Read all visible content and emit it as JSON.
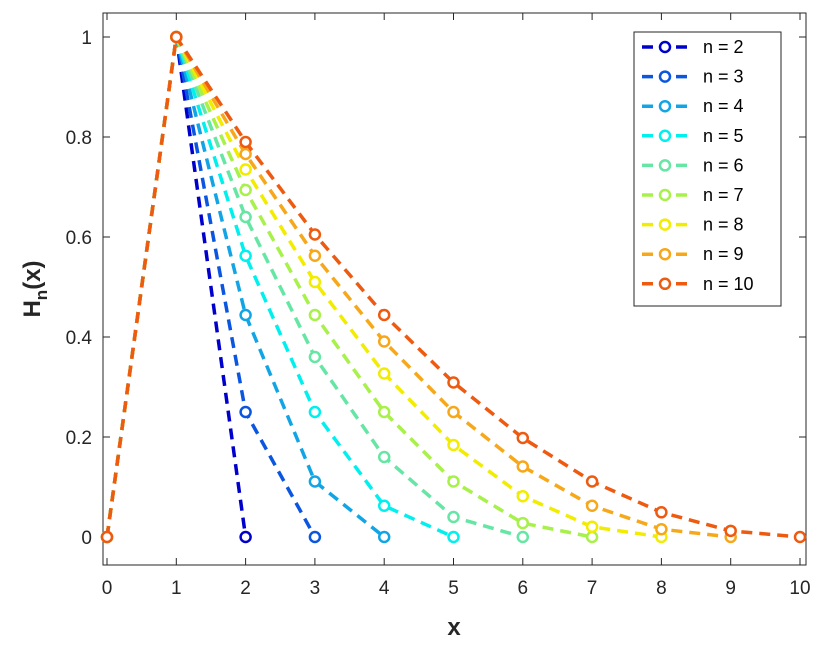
{
  "chart_data": {
    "type": "line",
    "xlabel": "x",
    "ylabel": "H",
    "ylabel_sub": "n",
    "ylabel_tail": "(x)",
    "xlim": [
      0,
      10
    ],
    "ylim": [
      -0.05,
      1.05
    ],
    "xticks": [
      "0",
      "1",
      "2",
      "3",
      "4",
      "5",
      "6",
      "7",
      "8",
      "9",
      "10"
    ],
    "yticks": [
      "0",
      "0.2",
      "0.4",
      "0.6",
      "0.8",
      "1"
    ],
    "legend_position": "top-right",
    "series": [
      {
        "name": "n = 2",
        "color": "#0000cd",
        "x": [
          0,
          1,
          2
        ],
        "y": [
          0,
          1,
          0
        ]
      },
      {
        "name": "n = 3",
        "color": "#0b56e0",
        "x": [
          0,
          1,
          2,
          3
        ],
        "y": [
          0,
          1,
          0.25,
          0
        ]
      },
      {
        "name": "n = 4",
        "color": "#11a5e6",
        "x": [
          0,
          1,
          2,
          3,
          4
        ],
        "y": [
          0,
          1,
          0.444,
          0.111,
          0
        ]
      },
      {
        "name": "n = 5",
        "color": "#00f0ee",
        "x": [
          0,
          1,
          2,
          3,
          4,
          5
        ],
        "y": [
          0,
          1,
          0.5625,
          0.25,
          0.0625,
          0
        ]
      },
      {
        "name": "n = 6",
        "color": "#66e6a4",
        "x": [
          0,
          1,
          2,
          3,
          4,
          5,
          6
        ],
        "y": [
          0,
          1,
          0.64,
          0.36,
          0.16,
          0.04,
          0
        ]
      },
      {
        "name": "n = 7",
        "color": "#a8f04a",
        "x": [
          0,
          1,
          2,
          3,
          4,
          5,
          6,
          7
        ],
        "y": [
          0,
          1,
          0.694,
          0.444,
          0.25,
          0.111,
          0.0278,
          0
        ]
      },
      {
        "name": "n = 8",
        "color": "#f2ec00",
        "x": [
          0,
          1,
          2,
          3,
          4,
          5,
          6,
          7,
          8
        ],
        "y": [
          0,
          1,
          0.735,
          0.51,
          0.327,
          0.184,
          0.0816,
          0.0204,
          0
        ]
      },
      {
        "name": "n = 9",
        "color": "#f7a81a",
        "x": [
          0,
          1,
          2,
          3,
          4,
          5,
          6,
          7,
          8,
          9
        ],
        "y": [
          0,
          1,
          0.766,
          0.5625,
          0.391,
          0.25,
          0.141,
          0.0625,
          0.0156,
          0
        ]
      },
      {
        "name": "n = 10",
        "color": "#ee5a10",
        "x": [
          0,
          1,
          2,
          3,
          4,
          5,
          6,
          7,
          8,
          9,
          10
        ],
        "y": [
          0,
          1,
          0.79,
          0.605,
          0.444,
          0.309,
          0.198,
          0.111,
          0.0494,
          0.0123,
          0
        ]
      }
    ]
  }
}
